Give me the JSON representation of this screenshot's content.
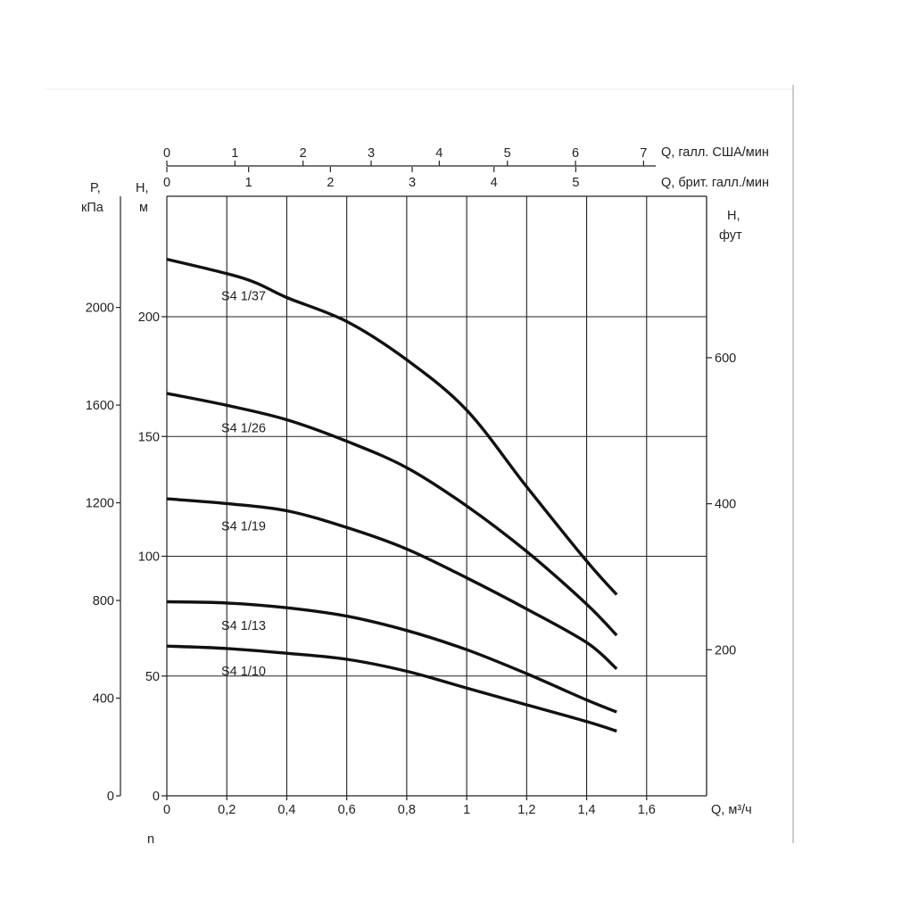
{
  "chart_data": {
    "type": "line",
    "x_label": "Q, м³/ч",
    "x_ticks": [
      "0",
      "0,2",
      "0,4",
      "0,6",
      "0,8",
      "1",
      "1,2",
      "1,4",
      "1,6"
    ],
    "xlim": [
      0,
      1.8
    ],
    "y_label_line1": "H,",
    "y_label_line2": "м",
    "y_ticks": [
      "0",
      "50",
      "100",
      "150",
      "200"
    ],
    "ylim": [
      0,
      250
    ],
    "pressure_label_line1": "P,",
    "pressure_label_line2": "кПа",
    "pressure_ticks": [
      "0",
      "400",
      "800",
      "1200",
      "1600",
      "2000"
    ],
    "feet_label_line1": "H,",
    "feet_label_line2": "фут",
    "feet_ticks": [
      "200",
      "400",
      "600"
    ],
    "us_gal_label": "Q, галл. США/мин",
    "us_gal_ticks": [
      "0",
      "1",
      "2",
      "3",
      "4",
      "5",
      "6",
      "7"
    ],
    "uk_gal_label": "Q, брит. галл./мин",
    "uk_gal_ticks": [
      "0",
      "1",
      "2",
      "3",
      "4",
      "5"
    ],
    "bottom_note": "n",
    "grid": true,
    "series": [
      {
        "name": "S4 1/37",
        "x": [
          0,
          0.2,
          0.3,
          0.4,
          0.6,
          0.8,
          1.0,
          1.2,
          1.4,
          1.5
        ],
        "y": [
          224,
          218,
          214,
          208,
          198,
          182,
          161,
          129,
          98,
          84
        ]
      },
      {
        "name": "S4 1/26",
        "x": [
          0,
          0.2,
          0.4,
          0.6,
          0.8,
          1.0,
          1.2,
          1.4,
          1.5
        ],
        "y": [
          168,
          163,
          157,
          148,
          137,
          121,
          102,
          80,
          67
        ]
      },
      {
        "name": "S4 1/19",
        "x": [
          0,
          0.2,
          0.4,
          0.6,
          0.8,
          1.0,
          1.2,
          1.4,
          1.5
        ],
        "y": [
          124,
          122,
          119,
          112,
          103,
          91,
          78,
          64,
          53
        ]
      },
      {
        "name": "S4 1/13",
        "x": [
          0,
          0.2,
          0.4,
          0.6,
          0.8,
          1.0,
          1.2,
          1.4,
          1.5
        ],
        "y": [
          81,
          80.5,
          78.5,
          75,
          69,
          61,
          51,
          40,
          35
        ]
      },
      {
        "name": "S4 1/10",
        "x": [
          0,
          0.2,
          0.4,
          0.6,
          0.8,
          1.0,
          1.2,
          1.4,
          1.5
        ],
        "y": [
          62.5,
          61.5,
          59.5,
          57,
          52,
          45,
          38,
          31,
          27
        ]
      }
    ]
  }
}
